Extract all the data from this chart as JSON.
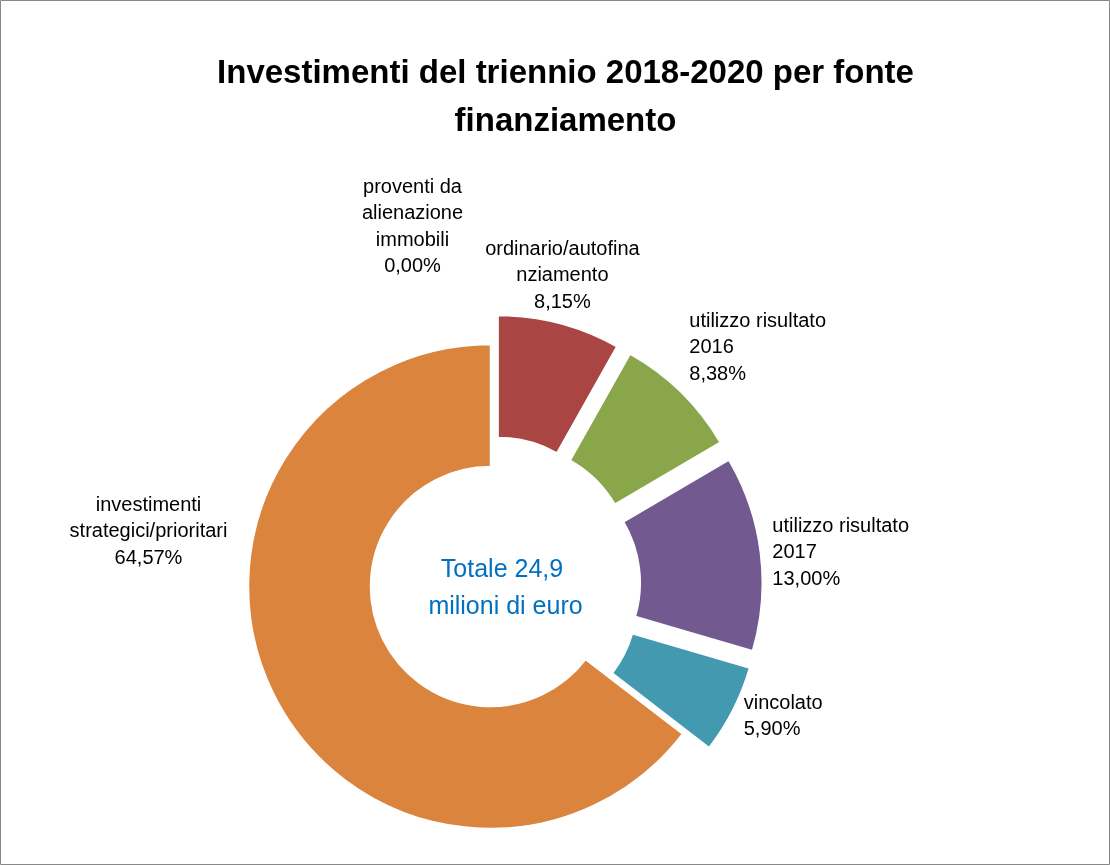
{
  "chart_data": {
    "type": "donut",
    "title": "Investimenti del triennio 2018-2020 per fonte finanziamento",
    "categories": [
      "proventi da alienazione immobili",
      "ordinario/autofinanziamento",
      "utilizzo risultato 2016",
      "utilizzo risultato 2017",
      "vincolato",
      "investimenti strategici/prioritari"
    ],
    "values": [
      0.0,
      8.15,
      8.38,
      13.0,
      5.9,
      64.57
    ],
    "colors": [
      "#4f81bd",
      "#a94543",
      "#8aa64b",
      "#725a90",
      "#4299b0",
      "#db843d"
    ],
    "value_labels": [
      "0,00%",
      "8,15%",
      "8,38%",
      "13,00%",
      "5,90%",
      "64,57%"
    ],
    "annotations": [
      "Totale  24,9\nmilioni di euro"
    ]
  }
}
